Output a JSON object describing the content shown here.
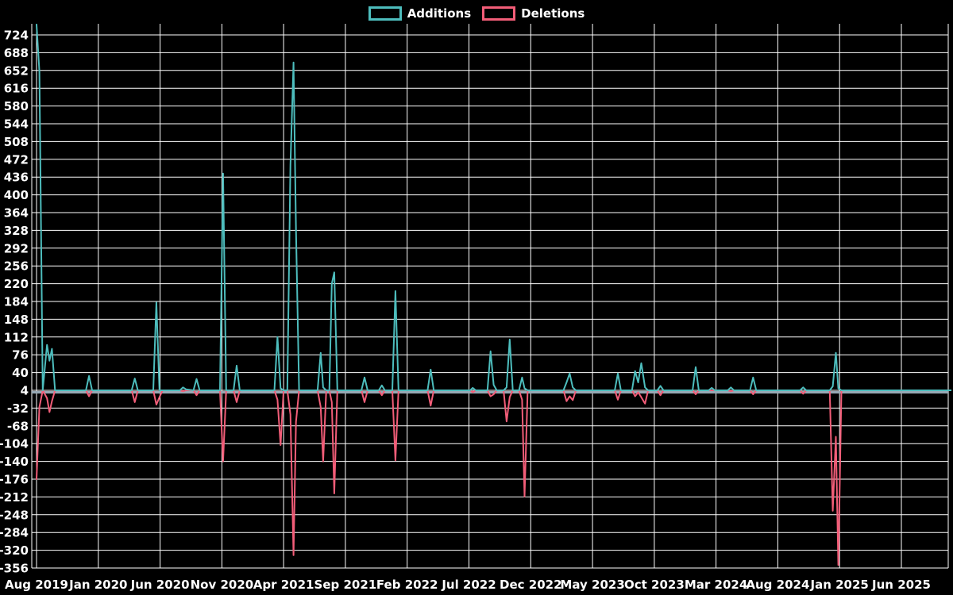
{
  "app": {
    "background": "#000000",
    "grid_color": "#ffffff",
    "zero_line_color": "#97a8b4"
  },
  "legend": {
    "position": "top",
    "items": [
      {
        "label": "Additions",
        "color": "#4dbdbd"
      },
      {
        "label": "Deletions",
        "color": "#f25d78"
      }
    ]
  },
  "chart_data": {
    "type": "line",
    "title": "",
    "xlabel": "",
    "ylabel": "",
    "grid": true,
    "legend_position": "top",
    "x_unit": "months since Aug 2019 (weekly points)",
    "xlim": [
      -0.4,
      74.2
    ],
    "ylim": [
      -366,
      753
    ],
    "baseline": 4,
    "y_ticks": [
      724,
      688,
      652,
      616,
      580,
      544,
      508,
      472,
      436,
      400,
      364,
      328,
      292,
      256,
      220,
      184,
      148,
      112,
      76,
      40,
      4,
      -32,
      -68,
      -104,
      -140,
      -176,
      -212,
      -248,
      -284,
      -320,
      -356
    ],
    "x_ticks": [
      {
        "m": 0,
        "label": "Aug 2019"
      },
      {
        "m": 5,
        "label": "Jan 2020"
      },
      {
        "m": 10,
        "label": "Jun 2020"
      },
      {
        "m": 15,
        "label": "Nov 2020"
      },
      {
        "m": 20,
        "label": "Apr 2021"
      },
      {
        "m": 25,
        "label": "Sep 2021"
      },
      {
        "m": 30,
        "label": "Feb 2022"
      },
      {
        "m": 35,
        "label": "Jul 2022"
      },
      {
        "m": 40,
        "label": "Dec 2022"
      },
      {
        "m": 45,
        "label": "May 2023"
      },
      {
        "m": 50,
        "label": "Oct 2023"
      },
      {
        "m": 55,
        "label": "Mar 2024"
      },
      {
        "m": 60,
        "label": "Aug 2024"
      },
      {
        "m": 65,
        "label": "Jan 2025"
      },
      {
        "m": 70,
        "label": "Jun 2025"
      }
    ],
    "series": [
      {
        "name": "Additions",
        "color": "#4dbdbd"
      },
      {
        "name": "Deletions",
        "color": "#f25d78"
      }
    ],
    "points_format": [
      "month",
      "additions",
      "deletions"
    ],
    "points": [
      [
        0.0,
        745,
        -176
      ],
      [
        0.23,
        650,
        -30
      ],
      [
        0.5,
        4,
        4
      ],
      [
        0.85,
        96,
        -12
      ],
      [
        1.05,
        64,
        -40
      ],
      [
        1.25,
        88,
        -18
      ],
      [
        1.5,
        4,
        4
      ],
      [
        4.0,
        4,
        4
      ],
      [
        4.25,
        33,
        -8
      ],
      [
        4.5,
        4,
        4
      ],
      [
        7.7,
        4,
        4
      ],
      [
        7.95,
        28,
        -20
      ],
      [
        8.2,
        4,
        4
      ],
      [
        9.45,
        4,
        4
      ],
      [
        9.7,
        182,
        -25
      ],
      [
        9.95,
        4,
        -10
      ],
      [
        10.2,
        4,
        4
      ],
      [
        11.6,
        4,
        4
      ],
      [
        11.85,
        10,
        2
      ],
      [
        12.1,
        6,
        4
      ],
      [
        12.7,
        4,
        4
      ],
      [
        12.95,
        27,
        -6
      ],
      [
        13.2,
        4,
        4
      ],
      [
        14.85,
        4,
        4
      ],
      [
        15.1,
        443,
        -140
      ],
      [
        15.35,
        4,
        4
      ],
      [
        15.95,
        4,
        4
      ],
      [
        16.2,
        54,
        -20
      ],
      [
        16.45,
        4,
        4
      ],
      [
        19.25,
        4,
        4
      ],
      [
        19.5,
        112,
        -15
      ],
      [
        19.75,
        8,
        -107
      ],
      [
        20.0,
        4,
        4
      ],
      [
        20.3,
        4,
        4
      ],
      [
        20.55,
        460,
        -45
      ],
      [
        20.8,
        668,
        -330
      ],
      [
        21.0,
        330,
        -60
      ],
      [
        21.25,
        4,
        4
      ],
      [
        22.75,
        4,
        4
      ],
      [
        23.0,
        80,
        -30
      ],
      [
        23.2,
        10,
        -140
      ],
      [
        23.45,
        4,
        4
      ],
      [
        23.7,
        4,
        4
      ],
      [
        23.9,
        220,
        -20
      ],
      [
        24.1,
        243,
        -205
      ],
      [
        24.35,
        4,
        4
      ],
      [
        26.3,
        4,
        4
      ],
      [
        26.55,
        30,
        -20
      ],
      [
        26.8,
        4,
        4
      ],
      [
        27.7,
        4,
        4
      ],
      [
        27.95,
        14,
        -6
      ],
      [
        28.2,
        4,
        4
      ],
      [
        28.8,
        4,
        4
      ],
      [
        29.05,
        205,
        -138
      ],
      [
        29.3,
        4,
        4
      ],
      [
        31.65,
        4,
        4
      ],
      [
        31.9,
        46,
        -27
      ],
      [
        32.15,
        4,
        4
      ],
      [
        35.1,
        4,
        4
      ],
      [
        35.3,
        9,
        0
      ],
      [
        35.55,
        4,
        4
      ],
      [
        36.5,
        4,
        4
      ],
      [
        36.75,
        83,
        -8
      ],
      [
        37.0,
        15,
        -4
      ],
      [
        37.25,
        4,
        4
      ],
      [
        37.8,
        4,
        4
      ],
      [
        38.05,
        10,
        -59
      ],
      [
        38.3,
        107,
        -10
      ],
      [
        38.55,
        4,
        4
      ],
      [
        39.05,
        4,
        4
      ],
      [
        39.3,
        30,
        -15
      ],
      [
        39.5,
        8,
        -211
      ],
      [
        39.75,
        4,
        4
      ],
      [
        42.65,
        4,
        4
      ],
      [
        42.9,
        20,
        -18
      ],
      [
        43.15,
        38,
        -8
      ],
      [
        43.4,
        10,
        -16
      ],
      [
        43.65,
        4,
        4
      ],
      [
        46.8,
        4,
        4
      ],
      [
        47.05,
        38,
        -15
      ],
      [
        47.3,
        4,
        4
      ],
      [
        48.2,
        4,
        4
      ],
      [
        48.45,
        43,
        -8
      ],
      [
        48.7,
        20,
        0
      ],
      [
        48.95,
        59,
        -10
      ],
      [
        49.25,
        10,
        -23
      ],
      [
        49.5,
        4,
        4
      ],
      [
        50.25,
        4,
        4
      ],
      [
        50.5,
        13,
        -6
      ],
      [
        50.75,
        4,
        4
      ],
      [
        53.1,
        4,
        4
      ],
      [
        53.35,
        51,
        -4
      ],
      [
        53.6,
        4,
        4
      ],
      [
        54.4,
        4,
        4
      ],
      [
        54.65,
        9,
        4
      ],
      [
        54.9,
        4,
        4
      ],
      [
        55.95,
        4,
        4
      ],
      [
        56.2,
        10,
        2
      ],
      [
        56.45,
        4,
        4
      ],
      [
        57.75,
        4,
        4
      ],
      [
        58.0,
        30,
        -4
      ],
      [
        58.25,
        4,
        4
      ],
      [
        61.8,
        4,
        4
      ],
      [
        62.05,
        10,
        -3
      ],
      [
        62.3,
        4,
        4
      ],
      [
        64.2,
        4,
        4
      ],
      [
        64.45,
        12,
        -240
      ],
      [
        64.7,
        80,
        -90
      ],
      [
        64.9,
        8,
        -350
      ],
      [
        65.15,
        4,
        4
      ],
      [
        74.2,
        4,
        4
      ]
    ]
  }
}
